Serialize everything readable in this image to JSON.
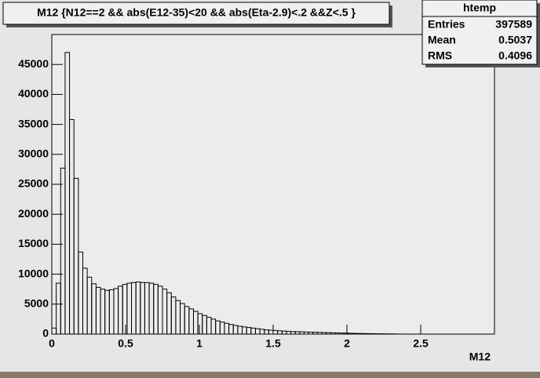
{
  "chart_data": {
    "type": "histogram",
    "title": "M12 {N12==2 && abs(E12-35)<20 && abs(Eta-2.9)<.2 &&Z<.5 }",
    "x_label": "M12",
    "color": "#000000",
    "bins": [
      0,
      0.03,
      0.06,
      0.09,
      0.12,
      0.15,
      0.18,
      0.21,
      0.24,
      0.27,
      0.3,
      0.33,
      0.36,
      0.39,
      0.42,
      0.45,
      0.48,
      0.51,
      0.54,
      0.57,
      0.6,
      0.63,
      0.66,
      0.69,
      0.72,
      0.75,
      0.78,
      0.81,
      0.84,
      0.87,
      0.9,
      0.93,
      0.96,
      0.99,
      1.02,
      1.05,
      1.08,
      1.11,
      1.14,
      1.17,
      1.2,
      1.23,
      1.26,
      1.29,
      1.32,
      1.35,
      1.38,
      1.41,
      1.44,
      1.47,
      1.5,
      1.53,
      1.56,
      1.59,
      1.62,
      1.65,
      1.68,
      1.71,
      1.74,
      1.77,
      1.8,
      1.83,
      1.86,
      1.89,
      1.92,
      1.95,
      1.98,
      2.01,
      2.04,
      2.07,
      2.1,
      2.13,
      2.16,
      2.19,
      2.22,
      2.25,
      2.28,
      2.31,
      2.34,
      2.37,
      2.4,
      2.43,
      2.46,
      2.49,
      2.52,
      2.55,
      2.58,
      2.61,
      2.64,
      2.67,
      2.7,
      2.73,
      2.76,
      2.79,
      2.82,
      2.85,
      2.88,
      2.91,
      2.94,
      2.97,
      3
    ],
    "values": [
      1000,
      8500,
      27700,
      47000,
      35800,
      26000,
      13700,
      11000,
      9500,
      8400,
      7800,
      7500,
      7300,
      7400,
      7600,
      8000,
      8300,
      8500,
      8600,
      8700,
      8600,
      8600,
      8500,
      8300,
      8000,
      7500,
      6900,
      6200,
      5600,
      5100,
      4600,
      4200,
      3800,
      3400,
      3100,
      2800,
      2500,
      2200,
      2000,
      1800,
      1600,
      1450,
      1300,
      1200,
      1100,
      1000,
      900,
      800,
      700,
      650,
      600,
      550,
      500,
      450,
      420,
      400,
      380,
      350,
      320,
      300,
      280,
      260,
      240,
      220,
      200,
      180,
      160,
      140,
      120,
      100,
      90,
      80,
      70,
      60,
      50,
      40,
      30,
      20,
      10,
      0,
      0,
      0,
      0,
      0,
      0,
      0,
      0,
      0,
      0,
      0,
      0,
      0,
      0,
      0,
      0,
      0,
      0,
      0,
      0,
      0
    ],
    "xlim": [
      0,
      3
    ],
    "ylim": [
      0,
      50000
    ],
    "xticks": [
      0,
      0.5,
      1,
      1.5,
      2,
      2.5
    ],
    "yticks": [
      0,
      5000,
      10000,
      15000,
      20000,
      25000,
      30000,
      35000,
      40000,
      45000
    ],
    "stats": {
      "name": "htemp",
      "rows": [
        {
          "label": "Entries",
          "value": 397589
        },
        {
          "label": "Mean",
          "value": 0.5037
        },
        {
          "label": "RMS",
          "value": 0.4096
        }
      ]
    }
  }
}
